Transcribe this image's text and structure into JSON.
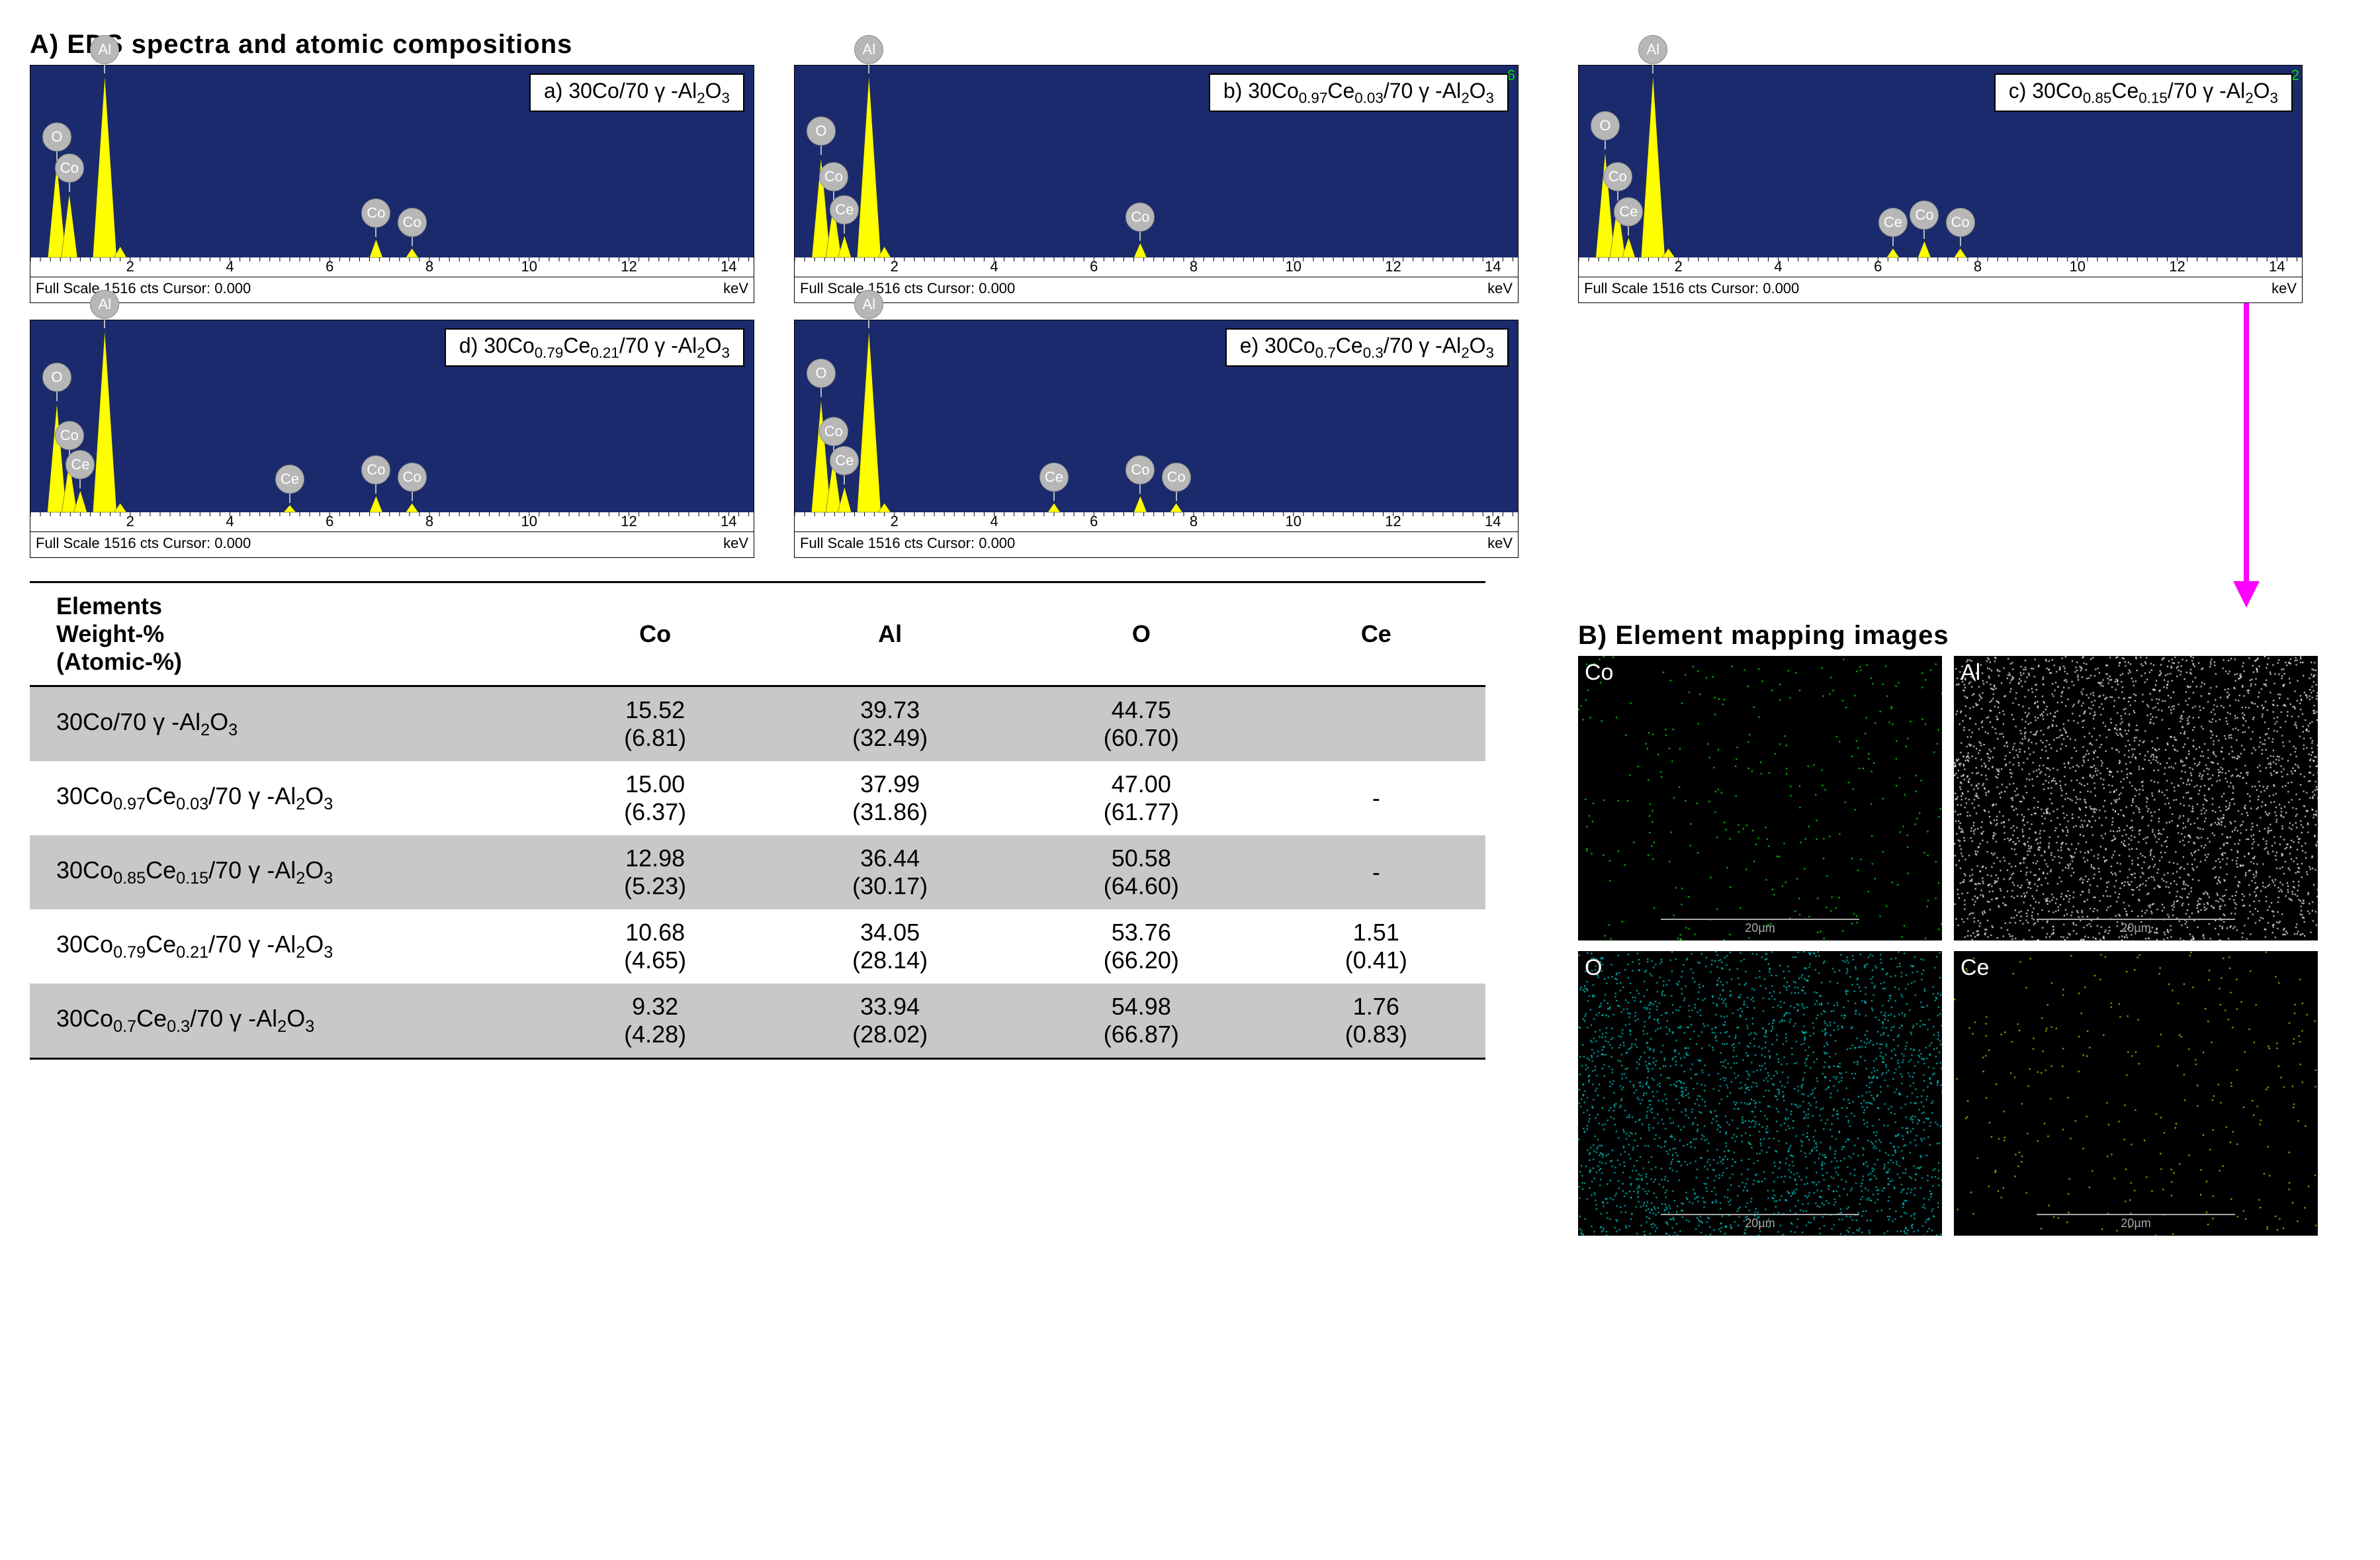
{
  "section_A_title": "A) EDS spectra and atomic compositions",
  "section_B_title": "B) Element mapping images",
  "axis": {
    "xlim": [
      0,
      14.5
    ],
    "xticks": [
      2,
      4,
      6,
      8,
      10,
      12,
      14
    ],
    "xlabel": "keV",
    "caption_left": "Full Scale 1516 cts Cursor: 0.000"
  },
  "colors": {
    "plot_bg": "#1a2a6c",
    "peak_fill": "#ffff00",
    "marker_fill": "#b7b7b7",
    "arrow": "#ff00ff",
    "table_shade": "#c8c8c8",
    "map_bg": "#000000",
    "scalebar": "#aaaaaa"
  },
  "spectra": [
    {
      "id": "a",
      "label_html": "a) 30Co/70 γ -Al<sub>2</sub>O<sub>3</sub>",
      "peaks": [
        {
          "x_kev": 0.53,
          "h": 0.52,
          "el": "O"
        },
        {
          "x_kev": 0.78,
          "h": 0.35,
          "el": "Co"
        },
        {
          "x_kev": 1.49,
          "h": 1.0,
          "el": "Al"
        },
        {
          "x_kev": 1.8,
          "h": 0.06,
          "el": ""
        },
        {
          "x_kev": 6.93,
          "h": 0.1,
          "el": "Co"
        },
        {
          "x_kev": 7.65,
          "h": 0.05,
          "el": "Co"
        }
      ]
    },
    {
      "id": "b",
      "label_html": "b) 30Co<sub>0.97</sub>Ce<sub>0.03</sub>/70 γ -Al<sub>2</sub>O<sub>3</sub>",
      "corner": "6",
      "peaks": [
        {
          "x_kev": 0.53,
          "h": 0.55,
          "el": "O"
        },
        {
          "x_kev": 0.78,
          "h": 0.3,
          "el": "Co"
        },
        {
          "x_kev": 1.0,
          "h": 0.12,
          "el": "Ce"
        },
        {
          "x_kev": 1.49,
          "h": 1.0,
          "el": "Al"
        },
        {
          "x_kev": 1.8,
          "h": 0.06,
          "el": ""
        },
        {
          "x_kev": 6.93,
          "h": 0.08,
          "el": "Co"
        }
      ]
    },
    {
      "id": "c",
      "label_html": "c) 30Co<sub>0.85</sub>Ce<sub>0.15</sub>/70 γ -Al<sub>2</sub>O<sub>3</sub>",
      "corner": "2",
      "peaks": [
        {
          "x_kev": 0.53,
          "h": 0.58,
          "el": "O"
        },
        {
          "x_kev": 0.78,
          "h": 0.3,
          "el": "Co"
        },
        {
          "x_kev": 1.0,
          "h": 0.11,
          "el": "Ce"
        },
        {
          "x_kev": 1.49,
          "h": 1.0,
          "el": "Al"
        },
        {
          "x_kev": 1.8,
          "h": 0.05,
          "el": ""
        },
        {
          "x_kev": 6.3,
          "h": 0.05,
          "el": "Ce"
        },
        {
          "x_kev": 6.93,
          "h": 0.09,
          "el": "Co"
        },
        {
          "x_kev": 7.65,
          "h": 0.05,
          "el": "Co"
        }
      ]
    },
    {
      "id": "d",
      "label_html": "d) 30Co<sub>0.79</sub>Ce<sub>0.21</sub>/70 γ -Al<sub>2</sub>O<sub>3</sub>",
      "peaks": [
        {
          "x_kev": 0.53,
          "h": 0.6,
          "el": "O"
        },
        {
          "x_kev": 0.78,
          "h": 0.28,
          "el": "Co"
        },
        {
          "x_kev": 1.0,
          "h": 0.12,
          "el": "Ce"
        },
        {
          "x_kev": 1.49,
          "h": 1.0,
          "el": "Al"
        },
        {
          "x_kev": 1.8,
          "h": 0.05,
          "el": ""
        },
        {
          "x_kev": 5.2,
          "h": 0.04,
          "el": "Ce"
        },
        {
          "x_kev": 6.93,
          "h": 0.09,
          "el": "Co"
        },
        {
          "x_kev": 7.65,
          "h": 0.05,
          "el": "Co"
        }
      ]
    },
    {
      "id": "e",
      "label_html": "e) 30Co<sub>0.7</sub>Ce<sub>0.3</sub>/70 γ -Al<sub>2</sub>O<sub>3</sub>",
      "peaks": [
        {
          "x_kev": 0.53,
          "h": 0.62,
          "el": "O"
        },
        {
          "x_kev": 0.78,
          "h": 0.3,
          "el": "Co"
        },
        {
          "x_kev": 1.0,
          "h": 0.14,
          "el": "Ce"
        },
        {
          "x_kev": 1.49,
          "h": 1.0,
          "el": "Al"
        },
        {
          "x_kev": 1.8,
          "h": 0.05,
          "el": ""
        },
        {
          "x_kev": 5.2,
          "h": 0.05,
          "el": "Ce"
        },
        {
          "x_kev": 6.93,
          "h": 0.09,
          "el": "Co"
        },
        {
          "x_kev": 7.65,
          "h": 0.05,
          "el": "Co"
        }
      ]
    }
  ],
  "mapping": {
    "scalebar_label": "20µm",
    "panels": [
      {
        "el": "Co",
        "dot_color": "#00ff00",
        "dot_count": 320,
        "seed": 11
      },
      {
        "el": "Al",
        "dot_color": "#ffffff",
        "dot_count": 3200,
        "seed": 22
      },
      {
        "el": "O",
        "dot_color": "#00d8d8",
        "dot_count": 2600,
        "seed": 33
      },
      {
        "el": "Ce",
        "dot_color": "#d8d800",
        "dot_count": 300,
        "seed": 44
      }
    ]
  },
  "table": {
    "header_html": "Elements<br>Weight-%<br>(Atomic-%)",
    "columns": [
      "Co",
      "Al",
      "O",
      "Ce"
    ],
    "rows": [
      {
        "sample_html": "30Co/70 γ -Al<sub>2</sub>O<sub>3</sub>",
        "shade": true,
        "values": [
          {
            "w": "15.52",
            "a": "(6.81)"
          },
          {
            "w": "39.73",
            "a": "(32.49)"
          },
          {
            "w": "44.75",
            "a": "(60.70)"
          },
          {
            "w": "",
            "a": ""
          }
        ]
      },
      {
        "sample_html": "30Co<sub>0.97</sub>Ce<sub>0.03</sub>/70 γ -Al<sub>2</sub>O<sub>3</sub>",
        "shade": false,
        "values": [
          {
            "w": "15.00",
            "a": "(6.37)"
          },
          {
            "w": "37.99",
            "a": "(31.86)"
          },
          {
            "w": "47.00",
            "a": "(61.77)"
          },
          {
            "w": "-",
            "a": ""
          }
        ]
      },
      {
        "sample_html": "30Co<sub>0.85</sub>Ce<sub>0.15</sub>/70 γ -Al<sub>2</sub>O<sub>3</sub>",
        "shade": true,
        "values": [
          {
            "w": "12.98",
            "a": "(5.23)"
          },
          {
            "w": "36.44",
            "a": "(30.17)"
          },
          {
            "w": "50.58",
            "a": "(64.60)"
          },
          {
            "w": "-",
            "a": ""
          }
        ]
      },
      {
        "sample_html": "30Co<sub>0.79</sub>Ce<sub>0.21</sub>/70 γ -Al<sub>2</sub>O<sub>3</sub>",
        "shade": false,
        "values": [
          {
            "w": "10.68",
            "a": "(4.65)"
          },
          {
            "w": "34.05",
            "a": "(28.14)"
          },
          {
            "w": "53.76",
            "a": "(66.20)"
          },
          {
            "w": "1.51",
            "a": "(0.41)"
          }
        ]
      },
      {
        "sample_html": "30Co<sub>0.7</sub>Ce<sub>0.3</sub>/70 γ -Al<sub>2</sub>O<sub>3</sub>",
        "shade": true,
        "values": [
          {
            "w": "9.32",
            "a": "(4.28)"
          },
          {
            "w": "33.94",
            "a": "(28.02)"
          },
          {
            "w": "54.98",
            "a": "(66.87)"
          },
          {
            "w": "1.76",
            "a": "(0.83)"
          }
        ]
      }
    ]
  }
}
